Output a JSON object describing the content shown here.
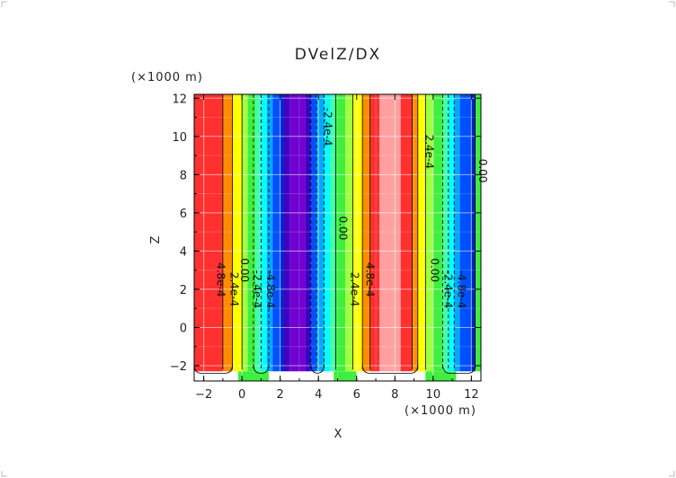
{
  "chart_data": {
    "type": "heatmap",
    "title": "DVelZ/DX",
    "xlabel": "X",
    "ylabel": "Z",
    "x_unit": "(×1000 m)",
    "y_unit": "(×1000 m)",
    "xlim": [
      -2.5,
      12.5
    ],
    "ylim": [
      -2.8,
      12.2
    ],
    "x_ticks": [
      -2,
      0,
      2,
      4,
      6,
      8,
      10,
      12
    ],
    "y_ticks": [
      -2,
      0,
      2,
      4,
      6,
      8,
      10,
      12
    ],
    "grid": true,
    "bottom_boundary_z": -2.3,
    "colors": {
      "max": "#ffa0a0",
      "high": "#ff3030",
      "orange": "#ff8c00",
      "yellow": "#ffff00",
      "yellowgreen": "#a0ff40",
      "green": "#40ee40",
      "aqua": "#40ffb0",
      "cyan": "#00ffff",
      "skyblue": "#00a8ff",
      "blue": "#0050ff",
      "darkblue": "#0020d0",
      "indigo": "#4000c0",
      "purple": "#7000d0"
    },
    "bands": [
      {
        "x0": -2.5,
        "x1": -1.0,
        "color": "high"
      },
      {
        "x0": -1.0,
        "x1": -0.5,
        "color": "orange"
      },
      {
        "x0": -0.5,
        "x1": 0.0,
        "color": "yellow"
      },
      {
        "x0": 0.0,
        "x1": 0.3,
        "color": "yellowgreen"
      },
      {
        "x0": 0.3,
        "x1": 0.7,
        "color": "green"
      },
      {
        "x0": 0.7,
        "x1": 1.0,
        "color": "aqua"
      },
      {
        "x0": 1.0,
        "x1": 1.3,
        "color": "cyan"
      },
      {
        "x0": 1.3,
        "x1": 1.6,
        "color": "skyblue"
      },
      {
        "x0": 1.6,
        "x1": 2.0,
        "color": "blue"
      },
      {
        "x0": 2.0,
        "x1": 2.2,
        "color": "darkblue"
      },
      {
        "x0": 2.2,
        "x1": 2.5,
        "color": "indigo"
      },
      {
        "x0": 2.5,
        "x1": 3.3,
        "color": "purple"
      },
      {
        "x0": 3.3,
        "x1": 3.6,
        "color": "indigo"
      },
      {
        "x0": 3.6,
        "x1": 3.9,
        "color": "blue"
      },
      {
        "x0": 3.9,
        "x1": 4.3,
        "color": "skyblue"
      },
      {
        "x0": 4.3,
        "x1": 4.6,
        "color": "cyan"
      },
      {
        "x0": 4.6,
        "x1": 4.9,
        "color": "aqua"
      },
      {
        "x0": 4.9,
        "x1": 5.4,
        "color": "green"
      },
      {
        "x0": 5.4,
        "x1": 5.8,
        "color": "yellowgreen"
      },
      {
        "x0": 5.8,
        "x1": 6.3,
        "color": "yellow"
      },
      {
        "x0": 6.3,
        "x1": 6.7,
        "color": "orange"
      },
      {
        "x0": 6.7,
        "x1": 7.2,
        "color": "high"
      },
      {
        "x0": 7.2,
        "x1": 8.3,
        "color": "max"
      },
      {
        "x0": 8.3,
        "x1": 8.9,
        "color": "high"
      },
      {
        "x0": 8.9,
        "x1": 9.2,
        "color": "orange"
      },
      {
        "x0": 9.2,
        "x1": 9.6,
        "color": "yellow"
      },
      {
        "x0": 9.6,
        "x1": 10.0,
        "color": "yellowgreen"
      },
      {
        "x0": 10.0,
        "x1": 10.5,
        "color": "green"
      },
      {
        "x0": 10.5,
        "x1": 10.8,
        "color": "aqua"
      },
      {
        "x0": 10.8,
        "x1": 11.1,
        "color": "cyan"
      },
      {
        "x0": 11.1,
        "x1": 11.4,
        "color": "skyblue"
      },
      {
        "x0": 11.4,
        "x1": 12.0,
        "color": "blue"
      },
      {
        "x0": 12.0,
        "x1": 12.2,
        "color": "darkblue"
      },
      {
        "x0": 12.2,
        "x1": 12.5,
        "color": "green"
      }
    ],
    "contours": [
      {
        "x": -1.0,
        "style": "solid"
      },
      {
        "x": -0.5,
        "style": "solid"
      },
      {
        "x": 0.0,
        "style": "solid"
      },
      {
        "x": 0.6,
        "style": "dashed"
      },
      {
        "x": 1.0,
        "style": "dashed"
      },
      {
        "x": 1.4,
        "style": "dashed"
      },
      {
        "x": 3.6,
        "style": "dashed"
      },
      {
        "x": 3.9,
        "style": "dashed"
      },
      {
        "x": 4.3,
        "style": "dashed"
      },
      {
        "x": 4.9,
        "style": "solid"
      },
      {
        "x": 5.8,
        "style": "solid"
      },
      {
        "x": 6.3,
        "style": "solid"
      },
      {
        "x": 6.7,
        "style": "solid"
      },
      {
        "x": 8.9,
        "style": "solid"
      },
      {
        "x": 9.2,
        "style": "solid"
      },
      {
        "x": 9.6,
        "style": "solid"
      },
      {
        "x": 10.5,
        "style": "dashed"
      },
      {
        "x": 10.8,
        "style": "dashed"
      },
      {
        "x": 11.1,
        "style": "dashed"
      },
      {
        "x": 12.2,
        "style": "solid"
      }
    ],
    "contour_labels": [
      {
        "text": "-2.4e-4",
        "x": 4.3,
        "z": 10.5
      },
      {
        "text": "2.4e-4",
        "x": 9.6,
        "z": 9.2
      },
      {
        "text": "0.00",
        "x": 5.1,
        "z": 5.2
      },
      {
        "text": "0.00",
        "x": 12.4,
        "z": 8.2
      },
      {
        "text": "4.8e-4",
        "x": -1.3,
        "z": 2.5
      },
      {
        "text": "2.4e-4",
        "x": -0.6,
        "z": 2.0
      },
      {
        "text": "0.00",
        "x": -0.05,
        "z": 3.0
      },
      {
        "text": "-2.4e-4",
        "x": 0.6,
        "z": 2.0
      },
      {
        "text": "-4.8e-4",
        "x": 1.3,
        "z": 2.0
      },
      {
        "text": "4.8e-4",
        "x": 6.5,
        "z": 2.5
      },
      {
        "text": "2.4e-4",
        "x": 5.7,
        "z": 2.0
      },
      {
        "text": "0.00",
        "x": 9.9,
        "z": 3.0
      },
      {
        "text": "-2.4e-4",
        "x": 10.6,
        "z": 2.0
      },
      {
        "text": "-4.8e-4",
        "x": 11.3,
        "z": 2.0
      }
    ]
  }
}
